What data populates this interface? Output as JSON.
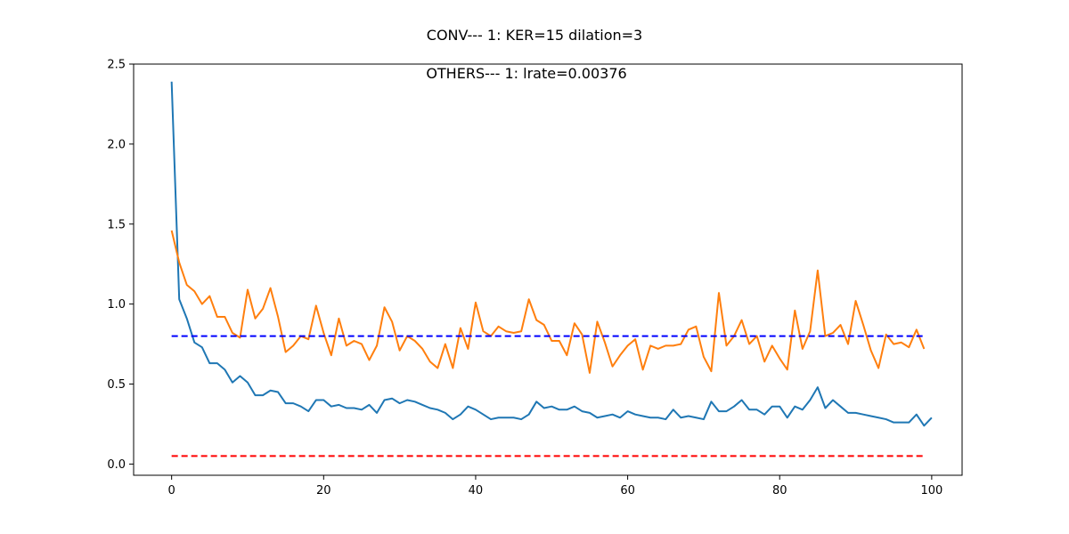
{
  "figure": {
    "suptitle": "CONV--- 1: KER=15   dilation=3",
    "title": "OTHERS--- 1: lrate=0.00376"
  },
  "chart_data": {
    "type": "line",
    "title": "OTHERS--- 1: lrate=0.00376",
    "xlabel": "",
    "ylabel": "",
    "xlim": [
      -5,
      104
    ],
    "ylim": [
      -0.07,
      2.5
    ],
    "xticks": [
      0,
      20,
      40,
      60,
      80,
      100
    ],
    "yticks": [
      0.0,
      0.5,
      1.0,
      1.5,
      2.0,
      2.5
    ],
    "xtick_labels": [
      "0",
      "20",
      "40",
      "60",
      "80",
      "100"
    ],
    "ytick_labels": [
      "0.0",
      "0.5",
      "1.0",
      "1.5",
      "2.0",
      "2.5"
    ],
    "grid": false,
    "legend": "none",
    "series": [
      {
        "color": "#1f77b4",
        "style": "solid",
        "x_start": 0,
        "values": [
          2.39,
          1.03,
          0.91,
          0.76,
          0.73,
          0.63,
          0.63,
          0.59,
          0.51,
          0.55,
          0.51,
          0.43,
          0.43,
          0.46,
          0.45,
          0.38,
          0.38,
          0.36,
          0.33,
          0.4,
          0.4,
          0.36,
          0.37,
          0.35,
          0.35,
          0.34,
          0.37,
          0.32,
          0.4,
          0.41,
          0.38,
          0.4,
          0.39,
          0.37,
          0.35,
          0.34,
          0.32,
          0.28,
          0.31,
          0.36,
          0.34,
          0.31,
          0.28,
          0.29,
          0.29,
          0.29,
          0.28,
          0.31,
          0.39,
          0.35,
          0.36,
          0.34,
          0.34,
          0.36,
          0.33,
          0.32,
          0.29,
          0.3,
          0.31,
          0.29,
          0.33,
          0.31,
          0.3,
          0.29,
          0.29,
          0.28,
          0.34,
          0.29,
          0.3,
          0.29,
          0.28,
          0.39,
          0.33,
          0.33,
          0.36,
          0.4,
          0.34,
          0.34,
          0.31,
          0.36,
          0.36,
          0.29,
          0.36,
          0.34,
          0.4,
          0.48,
          0.35,
          0.4,
          0.36,
          0.32,
          0.32,
          0.31,
          0.3,
          0.29,
          0.28,
          0.26,
          0.26,
          0.26,
          0.31,
          0.24,
          0.29
        ]
      },
      {
        "color": "#ff7f0e",
        "style": "solid",
        "x_start": 0,
        "values": [
          1.46,
          1.26,
          1.12,
          1.08,
          1.0,
          1.05,
          0.92,
          0.92,
          0.82,
          0.79,
          1.09,
          0.91,
          0.97,
          1.1,
          0.92,
          0.7,
          0.74,
          0.8,
          0.78,
          0.99,
          0.82,
          0.68,
          0.91,
          0.74,
          0.77,
          0.75,
          0.65,
          0.74,
          0.98,
          0.89,
          0.71,
          0.8,
          0.77,
          0.72,
          0.64,
          0.6,
          0.75,
          0.6,
          0.85,
          0.72,
          1.01,
          0.83,
          0.8,
          0.86,
          0.83,
          0.82,
          0.83,
          1.03,
          0.9,
          0.87,
          0.77,
          0.77,
          0.68,
          0.88,
          0.81,
          0.57,
          0.89,
          0.76,
          0.61,
          0.68,
          0.74,
          0.78,
          0.59,
          0.74,
          0.72,
          0.74,
          0.74,
          0.75,
          0.84,
          0.86,
          0.67,
          0.58,
          1.07,
          0.74,
          0.8,
          0.9,
          0.75,
          0.8,
          0.64,
          0.74,
          0.66,
          0.59,
          0.96,
          0.72,
          0.83,
          1.21,
          0.8,
          0.82,
          0.87,
          0.75,
          1.02,
          0.87,
          0.71,
          0.6,
          0.81,
          0.75,
          0.76,
          0.73,
          0.84,
          0.72
        ]
      },
      {
        "color": "#0000ff",
        "style": "dashed",
        "x": [
          0,
          99
        ],
        "values": [
          0.8,
          0.8
        ]
      },
      {
        "color": "#ff0000",
        "style": "dashed",
        "x": [
          0,
          99
        ],
        "values": [
          0.05,
          0.05
        ]
      }
    ]
  }
}
